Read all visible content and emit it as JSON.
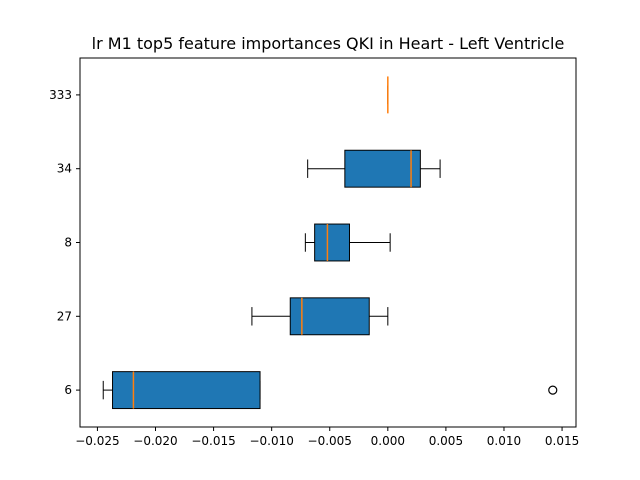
{
  "chart_data": {
    "type": "boxplot",
    "orientation": "horizontal",
    "title": "lr M1 top5 feature importances QKI in Heart - Left Ventricle",
    "xlabel": "",
    "ylabel": "",
    "xlim": [
      -0.0265,
      0.0162
    ],
    "x_ticks": [
      -0.025,
      -0.02,
      -0.015,
      -0.01,
      -0.005,
      0.0,
      0.005,
      0.01,
      0.015
    ],
    "x_tick_labels": [
      "−0.025",
      "−0.020",
      "−0.015",
      "−0.010",
      "−0.005",
      "0.000",
      "0.005",
      "0.010",
      "0.015"
    ],
    "categories": [
      "6",
      "27",
      "8",
      "34",
      "333"
    ],
    "boxes": [
      {
        "label": "6",
        "whislo": -0.0245,
        "q1": -0.0237,
        "med": -0.0219,
        "q3": -0.011,
        "whishi": -0.011,
        "fliers": [
          0.0142
        ]
      },
      {
        "label": "27",
        "whislo": -0.0117,
        "q1": -0.0084,
        "med": -0.0074,
        "q3": -0.0016,
        "whishi": 0.0,
        "fliers": []
      },
      {
        "label": "8",
        "whislo": -0.0071,
        "q1": -0.0063,
        "med": -0.0052,
        "q3": -0.0033,
        "whishi": 0.0002,
        "fliers": []
      },
      {
        "label": "34",
        "whislo": -0.0069,
        "q1": -0.0037,
        "med": 0.002,
        "q3": 0.0028,
        "whishi": 0.0045,
        "fliers": []
      },
      {
        "label": "333",
        "whislo": 0.0,
        "q1": 0.0,
        "med": 0.0,
        "q3": 0.0,
        "whishi": 0.0,
        "fliers": []
      }
    ],
    "colors": {
      "box_fill": "#1f77b4",
      "median": "#ff7f0e",
      "edge": "#000000"
    },
    "grid": false,
    "legend": "none"
  }
}
